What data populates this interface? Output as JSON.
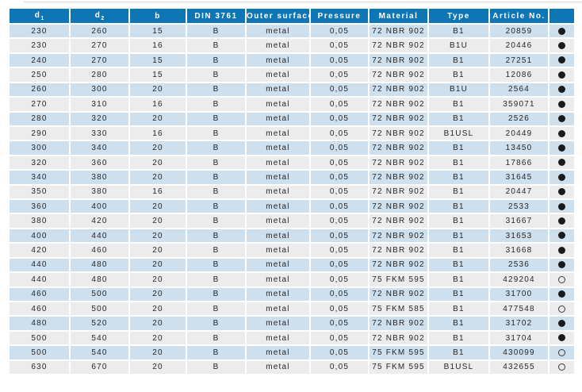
{
  "table": {
    "columns": [
      {
        "key": "d1",
        "label": "d",
        "sub": "1"
      },
      {
        "key": "d2",
        "label": "d",
        "sub": "2"
      },
      {
        "key": "b",
        "label": "b"
      },
      {
        "key": "din",
        "label": "DIN 3761"
      },
      {
        "key": "outer_surface",
        "label": "Outer surface"
      },
      {
        "key": "pressure",
        "label": "Pressure"
      },
      {
        "key": "material",
        "label": "Material"
      },
      {
        "key": "type",
        "label": "Type"
      },
      {
        "key": "article_no",
        "label": "Article No."
      },
      {
        "key": "availability",
        "label": ""
      }
    ],
    "rows": [
      {
        "d1": "230",
        "d2": "260",
        "b": "15",
        "din": "B",
        "outer_surface": "metal",
        "pressure": "0,05",
        "material": "72 NBR 902",
        "type": "B1",
        "article_no": "20859",
        "availability": "filled"
      },
      {
        "d1": "230",
        "d2": "270",
        "b": "16",
        "din": "B",
        "outer_surface": "metal",
        "pressure": "0,05",
        "material": "72 NBR 902",
        "type": "B1U",
        "article_no": "20446",
        "availability": "filled"
      },
      {
        "d1": "240",
        "d2": "270",
        "b": "15",
        "din": "B",
        "outer_surface": "metal",
        "pressure": "0,05",
        "material": "72 NBR 902",
        "type": "B1",
        "article_no": "27251",
        "availability": "filled"
      },
      {
        "d1": "250",
        "d2": "280",
        "b": "15",
        "din": "B",
        "outer_surface": "metal",
        "pressure": "0,05",
        "material": "72 NBR 902",
        "type": "B1",
        "article_no": "12086",
        "availability": "filled"
      },
      {
        "d1": "260",
        "d2": "300",
        "b": "20",
        "din": "B",
        "outer_surface": "metal",
        "pressure": "0,05",
        "material": "72 NBR 902",
        "type": "B1U",
        "article_no": "2564",
        "availability": "filled"
      },
      {
        "d1": "270",
        "d2": "310",
        "b": "16",
        "din": "B",
        "outer_surface": "metal",
        "pressure": "0,05",
        "material": "72 NBR 902",
        "type": "B1",
        "article_no": "359071",
        "availability": "filled"
      },
      {
        "d1": "280",
        "d2": "320",
        "b": "20",
        "din": "B",
        "outer_surface": "metal",
        "pressure": "0,05",
        "material": "72 NBR 902",
        "type": "B1",
        "article_no": "2526",
        "availability": "filled"
      },
      {
        "d1": "290",
        "d2": "330",
        "b": "16",
        "din": "B",
        "outer_surface": "metal",
        "pressure": "0,05",
        "material": "72 NBR 902",
        "type": "B1USL",
        "article_no": "20449",
        "availability": "filled"
      },
      {
        "d1": "300",
        "d2": "340",
        "b": "20",
        "din": "B",
        "outer_surface": "metal",
        "pressure": "0,05",
        "material": "72 NBR 902",
        "type": "B1",
        "article_no": "13450",
        "availability": "filled"
      },
      {
        "d1": "320",
        "d2": "360",
        "b": "20",
        "din": "B",
        "outer_surface": "metal",
        "pressure": "0,05",
        "material": "72 NBR 902",
        "type": "B1",
        "article_no": "17866",
        "availability": "filled"
      },
      {
        "d1": "340",
        "d2": "380",
        "b": "20",
        "din": "B",
        "outer_surface": "metal",
        "pressure": "0,05",
        "material": "72 NBR 902",
        "type": "B1",
        "article_no": "31645",
        "availability": "filled"
      },
      {
        "d1": "350",
        "d2": "380",
        "b": "16",
        "din": "B",
        "outer_surface": "metal",
        "pressure": "0,05",
        "material": "72 NBR 902",
        "type": "B1",
        "article_no": "20447",
        "availability": "filled"
      },
      {
        "d1": "360",
        "d2": "400",
        "b": "20",
        "din": "B",
        "outer_surface": "metal",
        "pressure": "0,05",
        "material": "72 NBR 902",
        "type": "B1",
        "article_no": "2533",
        "availability": "filled"
      },
      {
        "d1": "380",
        "d2": "420",
        "b": "20",
        "din": "B",
        "outer_surface": "metal",
        "pressure": "0,05",
        "material": "72 NBR 902",
        "type": "B1",
        "article_no": "31667",
        "availability": "filled"
      },
      {
        "d1": "400",
        "d2": "440",
        "b": "20",
        "din": "B",
        "outer_surface": "metal",
        "pressure": "0,05",
        "material": "72 NBR 902",
        "type": "B1",
        "article_no": "31653",
        "availability": "filled"
      },
      {
        "d1": "420",
        "d2": "460",
        "b": "20",
        "din": "B",
        "outer_surface": "metal",
        "pressure": "0,05",
        "material": "72 NBR 902",
        "type": "B1",
        "article_no": "31668",
        "availability": "filled"
      },
      {
        "d1": "440",
        "d2": "480",
        "b": "20",
        "din": "B",
        "outer_surface": "metal",
        "pressure": "0,05",
        "material": "72 NBR 902",
        "type": "B1",
        "article_no": "2536",
        "availability": "filled"
      },
      {
        "d1": "440",
        "d2": "480",
        "b": "20",
        "din": "B",
        "outer_surface": "metal",
        "pressure": "0,05",
        "material": "75 FKM 595",
        "type": "B1",
        "article_no": "429204",
        "availability": "empty"
      },
      {
        "d1": "460",
        "d2": "500",
        "b": "20",
        "din": "B",
        "outer_surface": "metal",
        "pressure": "0,05",
        "material": "72 NBR 902",
        "type": "B1",
        "article_no": "31700",
        "availability": "filled"
      },
      {
        "d1": "460",
        "d2": "500",
        "b": "20",
        "din": "B",
        "outer_surface": "metal",
        "pressure": "0,05",
        "material": "75 FKM 585",
        "type": "B1",
        "article_no": "477548",
        "availability": "empty"
      },
      {
        "d1": "480",
        "d2": "520",
        "b": "20",
        "din": "B",
        "outer_surface": "metal",
        "pressure": "0,05",
        "material": "72 NBR 902",
        "type": "B1",
        "article_no": "31702",
        "availability": "filled"
      },
      {
        "d1": "500",
        "d2": "540",
        "b": "20",
        "din": "B",
        "outer_surface": "metal",
        "pressure": "0,05",
        "material": "72 NBR 902",
        "type": "B1",
        "article_no": "31704",
        "availability": "filled"
      },
      {
        "d1": "500",
        "d2": "540",
        "b": "20",
        "din": "B",
        "outer_surface": "metal",
        "pressure": "0,05",
        "material": "75 FKM 595",
        "type": "B1",
        "article_no": "430099",
        "availability": "empty"
      },
      {
        "d1": "630",
        "d2": "670",
        "b": "20",
        "din": "B",
        "outer_surface": "metal",
        "pressure": "0,05",
        "material": "75 FKM 595",
        "type": "B1USL",
        "article_no": "432655",
        "availability": "empty"
      }
    ]
  },
  "icons": {
    "filled": "availability-filled-icon",
    "empty": "availability-empty-icon"
  },
  "colors": {
    "header_bg": "#0e76b5",
    "header_text": "#ffffff",
    "row_alt_blue": "#cedfee",
    "row_alt_gray": "#ececec",
    "cell_text": "#262626",
    "circle": "#1a1a1a"
  }
}
